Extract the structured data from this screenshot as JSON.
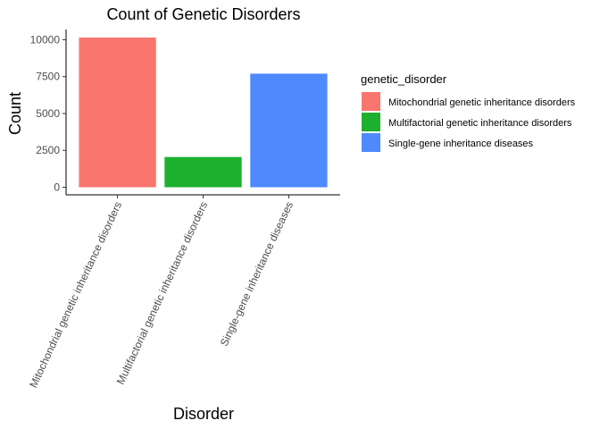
{
  "chart_data": {
    "type": "bar",
    "title": "Count of Genetic Disorders",
    "xlabel": "Disorder",
    "ylabel": "Count",
    "categories": [
      "Mitochondrial genetic inheritance disorders",
      "Multifactorial genetic inheritance disorders",
      "Single-gene inheritance diseases"
    ],
    "values": [
      10150,
      2050,
      7700
    ],
    "colors": [
      "#F8766D",
      "#1DB02E",
      "#4E8AFD"
    ],
    "ylim": [
      0,
      10150
    ],
    "yticks": [
      0,
      2500,
      5000,
      7500,
      10000
    ],
    "ytick_labels": [
      "0",
      "2500",
      "5000",
      "7500",
      "10000"
    ],
    "grid": false,
    "legend": {
      "title": "genetic_disorder",
      "placement": "right",
      "entries": [
        "Mitochondrial genetic inheritance disorders",
        "Multifactorial genetic inheritance disorders",
        "Single-gene inheritance diseases"
      ]
    }
  }
}
